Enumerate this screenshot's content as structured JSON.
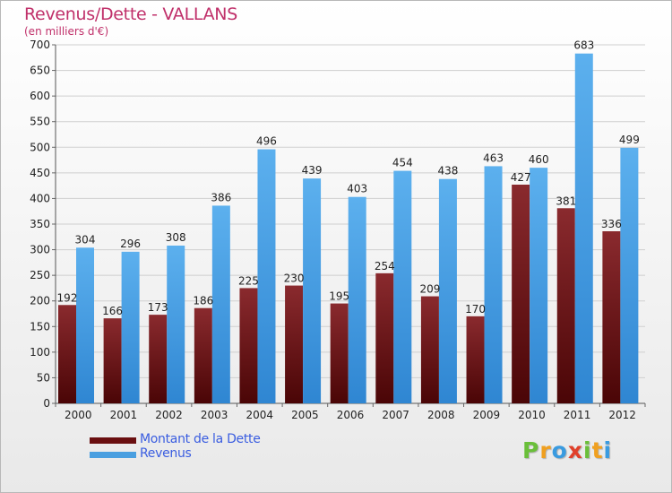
{
  "title": "Revenus/Dette - VALLANS",
  "subtitle": "(en milliers d'€)",
  "chart_data": {
    "type": "bar",
    "title": "Revenus/Dette - VALLANS",
    "ylabel": "(en milliers d'€)",
    "xlabel": "",
    "ylim": [
      0,
      700
    ],
    "ytick_step": 50,
    "grid": true,
    "categories": [
      "2000",
      "2001",
      "2002",
      "2003",
      "2004",
      "2005",
      "2006",
      "2007",
      "2008",
      "2009",
      "2010",
      "2011",
      "2012"
    ],
    "series": [
      {
        "name": "Montant de la Dette",
        "color": "#7a1a1c",
        "values": [
          192,
          166,
          173,
          186,
          225,
          230,
          195,
          254,
          209,
          170,
          427,
          381,
          336
        ]
      },
      {
        "name": "Revenus",
        "color": "#4a9fe0",
        "values": [
          304,
          296,
          308,
          386,
          496,
          439,
          403,
          454,
          438,
          463,
          460,
          683,
          499
        ]
      }
    ]
  },
  "legend": {
    "debt_label": "Montant de la Dette",
    "revenue_label": "Revenus",
    "debt_color": "#6a0f10",
    "revenue_color": "#4a9fe0"
  },
  "logo": {
    "letters": [
      "P",
      "r",
      "o",
      "x",
      "i",
      "t",
      "i"
    ],
    "colors": [
      "#6abf3a",
      "#f0a020",
      "#3a9be0",
      "#e0402a",
      "#6abf3a",
      "#f0a020",
      "#3a9be0"
    ]
  }
}
